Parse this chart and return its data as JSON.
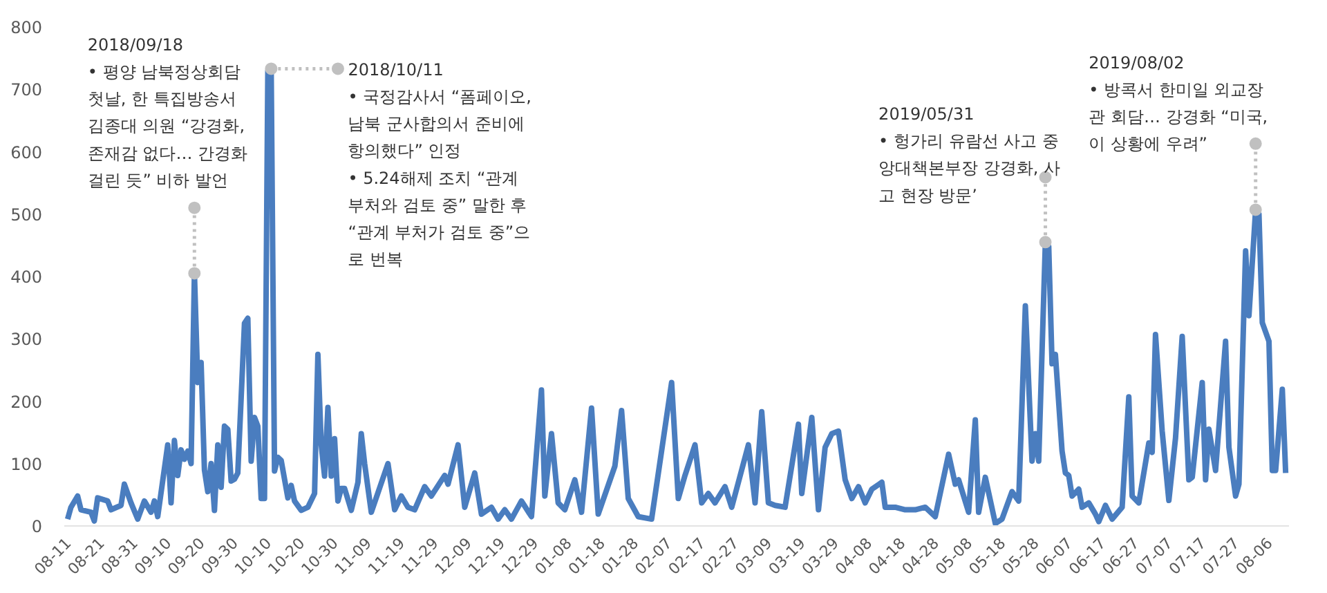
{
  "chart_data": {
    "type": "line",
    "color": "#4a7dbf",
    "line_style": "solid",
    "marker": "none",
    "x": [
      "2018-08-11",
      "2018-08-12",
      "2018-08-14",
      "2018-08-15",
      "2018-08-18",
      "2018-08-19",
      "2018-08-20",
      "2018-08-23",
      "2018-08-24",
      "2018-08-27",
      "2018-08-28",
      "2018-08-30",
      "2018-09-01",
      "2018-09-03",
      "2018-09-05",
      "2018-09-06",
      "2018-09-07",
      "2018-09-10",
      "2018-09-11",
      "2018-09-12",
      "2018-09-13",
      "2018-09-14",
      "2018-09-15",
      "2018-09-16",
      "2018-09-17",
      "2018-09-18",
      "2018-09-19",
      "2018-09-20",
      "2018-09-21",
      "2018-09-22",
      "2018-09-23",
      "2018-09-24",
      "2018-09-25",
      "2018-09-26",
      "2018-09-27",
      "2018-09-28",
      "2018-09-29",
      "2018-09-30",
      "2018-10-01",
      "2018-10-03",
      "2018-10-04",
      "2018-10-05",
      "2018-10-06",
      "2018-10-07",
      "2018-10-08",
      "2018-10-09",
      "2018-10-10",
      "2018-10-11",
      "2018-10-12",
      "2018-10-13",
      "2018-10-14",
      "2018-10-15",
      "2018-10-16",
      "2018-10-17",
      "2018-10-18",
      "2018-10-20",
      "2018-10-22",
      "2018-10-24",
      "2018-10-25",
      "2018-10-26",
      "2018-10-27",
      "2018-10-28",
      "2018-10-29",
      "2018-10-30",
      "2018-10-31",
      "2018-11-01",
      "2018-11-02",
      "2018-11-04",
      "2018-11-06",
      "2018-11-07",
      "2018-11-08",
      "2018-11-10",
      "2018-11-15",
      "2018-11-17",
      "2018-11-19",
      "2018-11-21",
      "2018-11-23",
      "2018-11-26",
      "2018-11-28",
      "2018-12-02",
      "2018-12-03",
      "2018-12-06",
      "2018-12-08",
      "2018-12-11",
      "2018-12-13",
      "2018-12-16",
      "2018-12-18",
      "2018-12-20",
      "2018-12-22",
      "2018-12-25",
      "2018-12-28",
      "2018-12-31",
      "2019-01-01",
      "2019-01-03",
      "2019-01-05",
      "2019-01-07",
      "2019-01-10",
      "2019-01-12",
      "2019-01-15",
      "2019-01-17",
      "2019-01-22",
      "2019-01-24",
      "2019-01-26",
      "2019-01-29",
      "2019-02-02",
      "2019-02-08",
      "2019-02-10",
      "2019-02-12",
      "2019-02-15",
      "2019-02-17",
      "2019-02-19",
      "2019-02-21",
      "2019-02-24",
      "2019-02-26",
      "2019-03-03",
      "2019-03-05",
      "2019-03-07",
      "2019-03-09",
      "2019-03-11",
      "2019-03-14",
      "2019-03-18",
      "2019-03-19",
      "2019-03-22",
      "2019-03-24",
      "2019-03-26",
      "2019-03-28",
      "2019-03-30",
      "2019-04-01",
      "2019-04-03",
      "2019-04-05",
      "2019-04-07",
      "2019-04-09",
      "2019-04-12",
      "2019-04-13",
      "2019-04-16",
      "2019-04-19",
      "2019-04-22",
      "2019-04-25",
      "2019-04-28",
      "2019-05-02",
      "2019-05-04",
      "2019-05-05",
      "2019-05-08",
      "2019-05-10",
      "2019-05-11",
      "2019-05-13",
      "2019-05-16",
      "2019-05-18",
      "2019-05-21",
      "2019-05-23",
      "2019-05-25",
      "2019-05-27",
      "2019-05-28",
      "2019-05-29",
      "2019-05-31",
      "2019-06-01",
      "2019-06-02",
      "2019-06-03",
      "2019-06-05",
      "2019-06-06",
      "2019-06-07",
      "2019-06-08",
      "2019-06-10",
      "2019-06-11",
      "2019-06-13",
      "2019-06-15",
      "2019-06-16",
      "2019-06-18",
      "2019-06-20",
      "2019-06-23",
      "2019-06-25",
      "2019-06-26",
      "2019-06-28",
      "2019-07-01",
      "2019-07-02",
      "2019-07-03",
      "2019-07-05",
      "2019-07-07",
      "2019-07-09",
      "2019-07-11",
      "2019-07-13",
      "2019-07-14",
      "2019-07-17",
      "2019-07-18",
      "2019-07-19",
      "2019-07-21",
      "2019-07-24",
      "2019-07-25",
      "2019-07-27",
      "2019-07-28",
      "2019-07-30",
      "2019-07-31",
      "2019-08-02",
      "2019-08-03",
      "2019-08-04",
      "2019-08-06",
      "2019-08-07",
      "2019-08-08",
      "2019-08-10",
      "2019-08-11"
    ],
    "values": [
      11,
      30,
      48,
      26,
      22,
      8,
      45,
      40,
      26,
      33,
      67,
      37,
      11,
      40,
      22,
      40,
      15,
      130,
      37,
      137,
      81,
      122,
      107,
      120,
      100,
      405,
      230,
      262,
      90,
      55,
      100,
      25,
      130,
      62,
      160,
      155,
      72,
      75,
      85,
      325,
      333,
      104,
      174,
      160,
      44,
      44,
      730,
      733,
      88,
      110,
      105,
      75,
      45,
      65,
      40,
      25,
      30,
      52,
      275,
      130,
      80,
      190,
      80,
      140,
      40,
      60,
      60,
      25,
      70,
      148,
      100,
      22,
      100,
      26,
      48,
      30,
      26,
      63,
      48,
      81,
      67,
      130,
      30,
      85,
      19,
      30,
      11,
      26,
      11,
      40,
      15,
      218,
      48,
      148,
      37,
      26,
      74,
      22,
      189,
      19,
      96,
      185,
      44,
      15,
      11,
      230,
      44,
      81,
      130,
      37,
      52,
      37,
      63,
      30,
      130,
      37,
      183,
      37,
      33,
      30,
      163,
      52,
      174,
      26,
      126,
      148,
      152,
      74,
      44,
      63,
      37,
      59,
      70,
      30,
      30,
      26,
      26,
      30,
      15,
      115,
      67,
      74,
      22,
      170,
      22,
      78,
      4,
      11,
      55,
      40,
      353,
      104,
      148,
      104,
      455,
      448,
      260,
      275,
      120,
      85,
      81,
      48,
      59,
      30,
      37,
      19,
      7,
      33,
      11,
      30,
      207,
      48,
      37,
      133,
      118,
      307,
      152,
      41,
      141,
      304,
      74,
      78,
      230,
      74,
      155,
      89,
      296,
      126,
      48,
      67,
      441,
      337,
      507,
      500,
      326,
      296,
      89,
      89,
      219,
      85
    ],
    "xticks": [
      {
        "value": "2018-08-11",
        "label": "08-11"
      },
      {
        "value": "2018-08-21",
        "label": "08-21"
      },
      {
        "value": "2018-08-31",
        "label": "08-31"
      },
      {
        "value": "2018-09-10",
        "label": "09-10"
      },
      {
        "value": "2018-09-20",
        "label": "09-20"
      },
      {
        "value": "2018-09-30",
        "label": "09-30"
      },
      {
        "value": "2018-10-10",
        "label": "10-10"
      },
      {
        "value": "2018-10-20",
        "label": "10-20"
      },
      {
        "value": "2018-10-30",
        "label": "10-30"
      },
      {
        "value": "2018-11-09",
        "label": "11-09"
      },
      {
        "value": "2018-11-19",
        "label": "11-19"
      },
      {
        "value": "2018-11-29",
        "label": "11-29"
      },
      {
        "value": "2018-12-09",
        "label": "12-09"
      },
      {
        "value": "2018-12-19",
        "label": "12-19"
      },
      {
        "value": "2018-12-29",
        "label": "12-29"
      },
      {
        "value": "2019-01-08",
        "label": "01-08"
      },
      {
        "value": "2019-01-18",
        "label": "01-18"
      },
      {
        "value": "2019-01-28",
        "label": "01-28"
      },
      {
        "value": "2019-02-07",
        "label": "02-07"
      },
      {
        "value": "2019-02-17",
        "label": "02-17"
      },
      {
        "value": "2019-02-27",
        "label": "02-27"
      },
      {
        "value": "2019-03-09",
        "label": "03-09"
      },
      {
        "value": "2019-03-19",
        "label": "03-19"
      },
      {
        "value": "2019-03-29",
        "label": "03-29"
      },
      {
        "value": "2019-04-08",
        "label": "04-08"
      },
      {
        "value": "2019-04-18",
        "label": "04-18"
      },
      {
        "value": "2019-04-28",
        "label": "04-28"
      },
      {
        "value": "2019-05-08",
        "label": "05-08"
      },
      {
        "value": "2019-05-18",
        "label": "05-18"
      },
      {
        "value": "2019-05-28",
        "label": "05-28"
      },
      {
        "value": "2019-06-07",
        "label": "06-07"
      },
      {
        "value": "2019-06-17",
        "label": "06-17"
      },
      {
        "value": "2019-06-27",
        "label": "06-27"
      },
      {
        "value": "2019-07-07",
        "label": "07-07"
      },
      {
        "value": "2019-07-17",
        "label": "07-17"
      },
      {
        "value": "2019-07-27",
        "label": "07-27"
      },
      {
        "value": "2019-08-06",
        "label": "08-06"
      }
    ],
    "xlim": [
      "2018-08-10",
      "2019-08-12"
    ],
    "ylim": [
      0,
      800
    ],
    "yticks": [
      0,
      100,
      200,
      300,
      400,
      500,
      600,
      700,
      800
    ],
    "annotations": [
      {
        "text": "2018/09/18\n • 평양 남북정상회담\n첫날, 한 특집방송서\n김종대 의원 “강경화,\n존재감 없다… 간경화\n걸린 듯” 비하 발언",
        "x": "2018-09-18",
        "y": 405
      },
      {
        "text": "2018/10/11\n • 국정감사서 “폼페이오,\n남북 군사합의서 준비에\n항의했다” 인정\n • 5.24해제 조치 “관계\n부처와 검토 중” 말한 후\n“관계 부처가 검토 중”으\n로 번복",
        "x": "2018-10-11",
        "y": 733
      },
      {
        "text": "2019/05/31\n • 헝가리 유람선 사고 중\n앙대책본부장 강경화, 사\n고 현장 방문’",
        "x": "2019-05-31",
        "y": 455
      },
      {
        "text": "2019/08/02\n • 방콕서 한미일 외교장\n관 회담… 강경화 “미국,\n이 상황에 우려”",
        "x": "2019-08-02",
        "y": 507
      }
    ]
  }
}
